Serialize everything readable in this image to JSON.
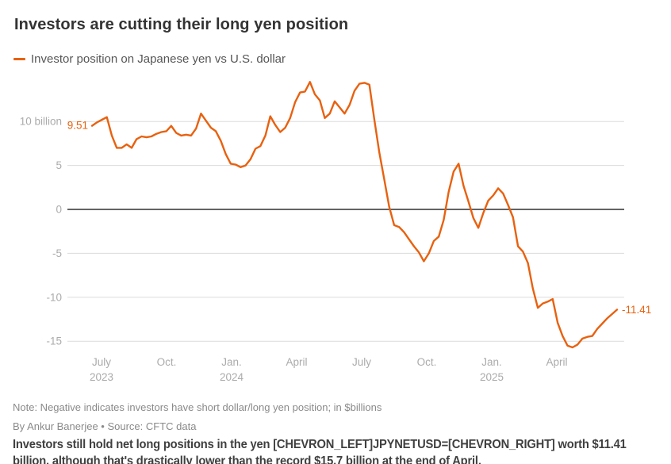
{
  "header": {
    "title": "Investors are cutting their long yen position"
  },
  "legend": {
    "label": "Investor position on Japanese yen vs U.S. dollar"
  },
  "chart_data": {
    "type": "line",
    "title": "Investors are cutting their long yen position",
    "unit": "$billions (net position on Japanese yen vs U.S. dollar)",
    "grid": true,
    "zero_line": true,
    "ylim": [
      -17.5,
      15.5
    ],
    "y_ticks": [
      {
        "value": 10,
        "label": "10 billion"
      },
      {
        "value": 5,
        "label": "5"
      },
      {
        "value": 0,
        "label": "0"
      },
      {
        "value": -5,
        "label": "-5"
      },
      {
        "value": -10,
        "label": "-10"
      },
      {
        "value": -15,
        "label": "-15"
      }
    ],
    "x_ticks": [
      {
        "label": "July",
        "sub": "2023"
      },
      {
        "label": "Oct.",
        "sub": ""
      },
      {
        "label": "Jan.",
        "sub": "2024"
      },
      {
        "label": "April",
        "sub": ""
      },
      {
        "label": "July",
        "sub": ""
      },
      {
        "label": "Oct.",
        "sub": ""
      },
      {
        "label": "Jan.",
        "sub": "2025"
      },
      {
        "label": "April",
        "sub": ""
      }
    ],
    "series": [
      {
        "name": "Investor position on Japanese yen vs U.S. dollar",
        "color": "#e8610f",
        "cadence": "weekly",
        "values": [
          9.51,
          9.9,
          10.2,
          10.5,
          8.4,
          7.0,
          7.0,
          7.4,
          7.0,
          8.0,
          8.3,
          8.2,
          8.3,
          8.6,
          8.8,
          8.9,
          9.5,
          8.7,
          8.4,
          8.5,
          8.4,
          9.2,
          10.9,
          10.1,
          9.3,
          8.9,
          7.8,
          6.3,
          5.2,
          5.1,
          4.8,
          5.0,
          5.7,
          6.9,
          7.2,
          8.4,
          10.6,
          9.6,
          8.8,
          9.3,
          10.4,
          12.2,
          13.3,
          13.4,
          14.5,
          13.1,
          12.4,
          10.4,
          10.9,
          12.3,
          11.6,
          10.9,
          11.9,
          13.5,
          14.3,
          14.4,
          14.2,
          10.2,
          6.5,
          3.4,
          0.3,
          -1.8,
          -2.0,
          -2.6,
          -3.4,
          -4.2,
          -4.9,
          -5.9,
          -5.0,
          -3.6,
          -3.1,
          -1.2,
          2.0,
          4.3,
          5.2,
          2.7,
          0.9,
          -1.0,
          -2.1,
          -0.4,
          1.0,
          1.6,
          2.4,
          1.8,
          0.5,
          -0.9,
          -4.2,
          -4.8,
          -6.1,
          -9.0,
          -11.2,
          -10.7,
          -10.5,
          -10.2,
          -12.9,
          -14.4,
          -15.5,
          -15.7,
          -15.4,
          -14.7,
          -14.5,
          -14.4,
          -13.6,
          -13.0,
          -12.4,
          -11.9,
          -11.41
        ]
      }
    ],
    "annotations": {
      "start": {
        "text": "9.51",
        "value": 9.51
      },
      "end": {
        "text": "-11.41",
        "value": -11.41
      }
    }
  },
  "footer": {
    "note": "Note: Negative indicates investors have short dollar/long yen position; in $billions",
    "byline": "By Ankur Banerjee • Source: CFTC data",
    "story": "Investors still hold net long positions in the yen [CHEVRON_LEFT]JPYNETUSD=[CHEVRON_RIGHT] worth $11.41 billion, although that's drastically lower than the record $15.7 billion at the end of April."
  },
  "colors": {
    "line": "#e8610f",
    "grid": "#dcdcdc",
    "zero_line": "#4d4d4d",
    "axis_text": "#ababab",
    "title_text": "#333333",
    "muted_text": "#8a8a8a",
    "story_text": "#3f3f3f"
  }
}
